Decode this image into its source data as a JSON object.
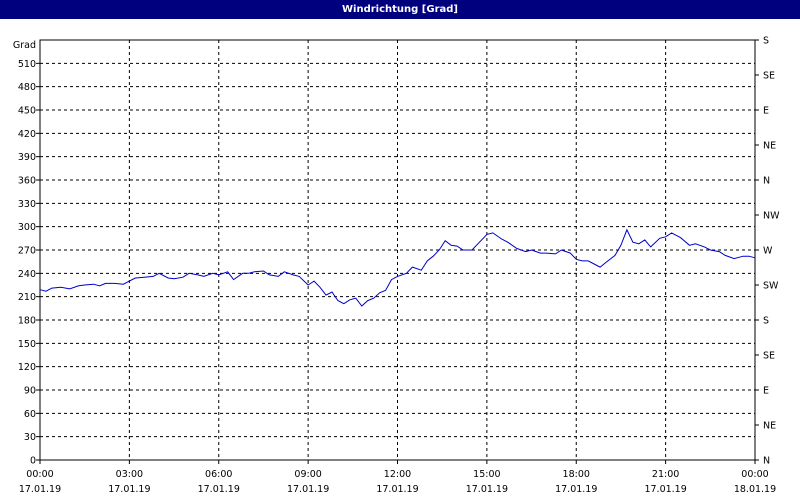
{
  "window": {
    "title": "Windrichtung [Grad]"
  },
  "chart_data": {
    "type": "line",
    "title": "Windrichtung [Grad]",
    "ylabel": "Grad",
    "ylim": [
      0,
      540
    ],
    "y_ticks": [
      0,
      30,
      60,
      90,
      120,
      150,
      180,
      210,
      240,
      270,
      300,
      330,
      360,
      390,
      420,
      450,
      480,
      510
    ],
    "x_range_hours": [
      0,
      24
    ],
    "x_ticks": [
      {
        "time": "00:00",
        "date": "17.01.19"
      },
      {
        "time": "03:00",
        "date": "17.01.19"
      },
      {
        "time": "06:00",
        "date": "17.01.19"
      },
      {
        "time": "09:00",
        "date": "17.01.19"
      },
      {
        "time": "12:00",
        "date": "17.01.19"
      },
      {
        "time": "15:00",
        "date": "17.01.19"
      },
      {
        "time": "18:00",
        "date": "17.01.19"
      },
      {
        "time": "21:00",
        "date": "17.01.19"
      },
      {
        "time": "00:00",
        "date": "18.01.19"
      }
    ],
    "right_axis_labels": [
      "N",
      "NE",
      "E",
      "SE",
      "S",
      "SW",
      "W",
      "NW",
      "N",
      "NE",
      "E",
      "SE",
      "S"
    ],
    "grid": true,
    "line_color": "#0000cc",
    "series": [
      {
        "x": [
          0,
          0.2,
          0.4,
          0.7,
          1.0,
          1.3,
          1.5,
          1.8,
          2.0,
          2.2,
          2.5,
          2.8,
          3.0,
          3.2,
          3.5,
          3.8,
          4.0,
          4.3,
          4.5,
          4.8,
          5.0,
          5.3,
          5.5,
          5.8,
          6.0,
          6.3,
          6.5,
          6.8,
          7.0,
          7.2,
          7.5,
          7.7,
          8.0,
          8.2,
          8.5,
          8.7,
          9.0,
          9.2,
          9.4,
          9.6,
          9.8,
          10.0,
          10.2,
          10.4,
          10.6,
          10.8,
          11.0,
          11.2,
          11.4,
          11.6,
          11.8,
          12.0,
          12.3,
          12.5,
          12.8,
          13.0,
          13.2,
          13.4,
          13.6,
          13.8,
          14.0,
          14.2,
          14.5,
          14.8,
          15.0,
          15.2,
          15.5,
          15.7,
          16.0,
          16.3,
          16.5,
          16.8,
          17.0,
          17.3,
          17.5,
          17.8,
          18.0,
          18.2,
          18.4,
          18.6,
          18.8,
          19.0,
          19.3,
          19.5,
          19.7,
          19.9,
          20.1,
          20.3,
          20.5,
          20.8,
          21.0,
          21.2,
          21.5,
          21.8,
          22.0,
          22.3,
          22.5,
          22.8,
          23.0,
          23.3,
          23.6,
          23.8,
          24.0
        ],
        "values": [
          219,
          217,
          221,
          222,
          220,
          224,
          225,
          226,
          224,
          227,
          227,
          226,
          230,
          234,
          235,
          236,
          240,
          234,
          233,
          235,
          240,
          238,
          236,
          240,
          238,
          242,
          232,
          240,
          240,
          242,
          243,
          238,
          236,
          242,
          238,
          236,
          225,
          230,
          222,
          212,
          216,
          205,
          201,
          206,
          208,
          198,
          205,
          208,
          215,
          218,
          232,
          236,
          240,
          248,
          244,
          256,
          262,
          270,
          282,
          276,
          275,
          270,
          270,
          282,
          290,
          292,
          284,
          280,
          272,
          268,
          270,
          266,
          266,
          265,
          270,
          266,
          258,
          256,
          256,
          252,
          248,
          254,
          263,
          276,
          296,
          280,
          278,
          283,
          274,
          285,
          287,
          292,
          286,
          276,
          278,
          274,
          270,
          268,
          263,
          259,
          262,
          262,
          260
        ]
      }
    ]
  }
}
